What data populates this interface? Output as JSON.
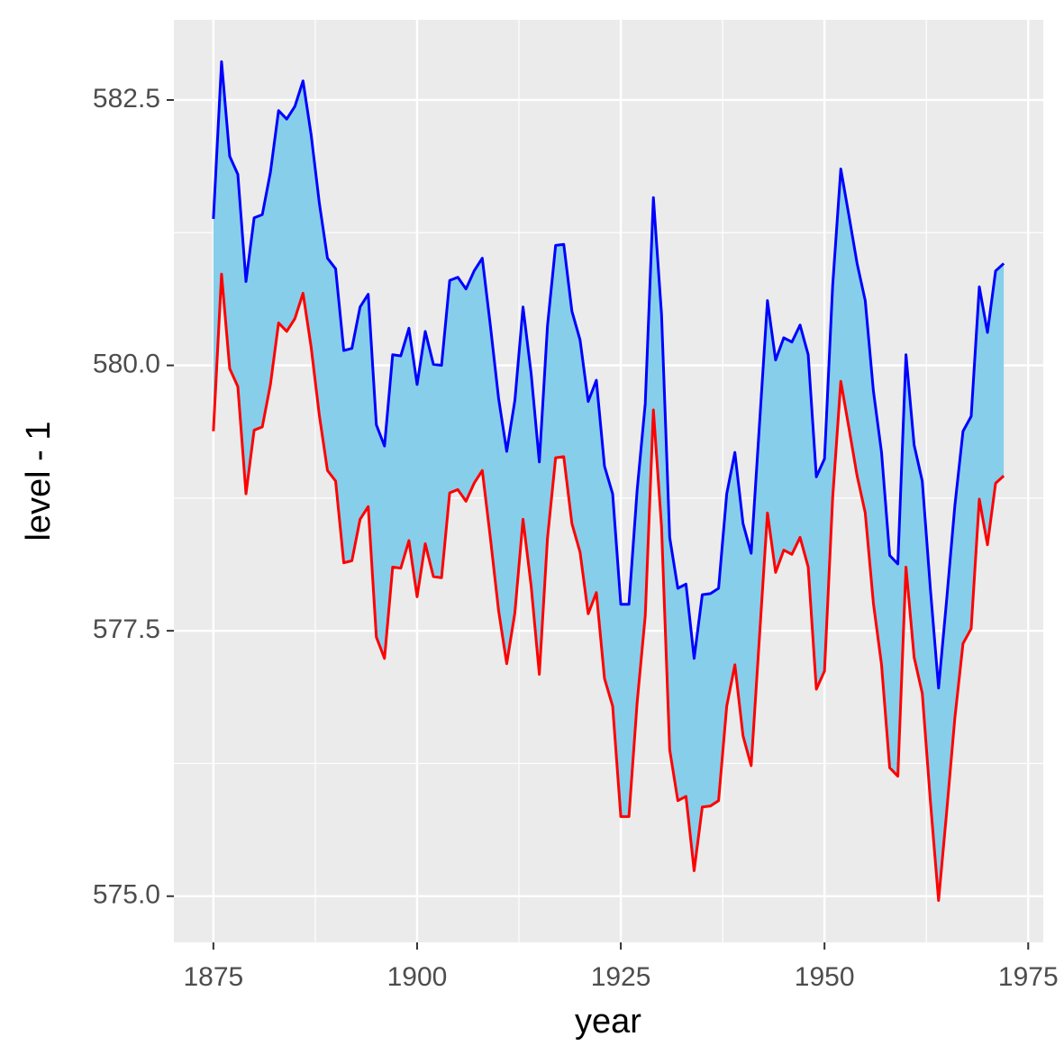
{
  "chart_data": {
    "type": "ribbon",
    "xlabel": "year",
    "ylabel": "level - 1",
    "x": [
      1875,
      1876,
      1877,
      1878,
      1879,
      1880,
      1881,
      1882,
      1883,
      1884,
      1885,
      1886,
      1887,
      1888,
      1889,
      1890,
      1891,
      1892,
      1893,
      1894,
      1895,
      1896,
      1897,
      1898,
      1899,
      1900,
      1901,
      1902,
      1903,
      1904,
      1905,
      1906,
      1907,
      1908,
      1909,
      1910,
      1911,
      1912,
      1913,
      1914,
      1915,
      1916,
      1917,
      1918,
      1919,
      1920,
      1921,
      1922,
      1923,
      1924,
      1925,
      1926,
      1927,
      1928,
      1929,
      1930,
      1931,
      1932,
      1933,
      1934,
      1935,
      1936,
      1937,
      1938,
      1939,
      1940,
      1941,
      1942,
      1943,
      1944,
      1945,
      1946,
      1947,
      1948,
      1949,
      1950,
      1951,
      1952,
      1953,
      1954,
      1955,
      1956,
      1957,
      1958,
      1959,
      1960,
      1961,
      1962,
      1963,
      1964,
      1965,
      1966,
      1967,
      1968,
      1969,
      1970,
      1971,
      1972
    ],
    "series": [
      {
        "color": "#ff0000",
        "values": [
          579.38,
          580.86,
          579.97,
          579.8,
          578.79,
          579.39,
          579.42,
          579.82,
          580.4,
          580.32,
          580.44,
          580.68,
          580.17,
          579.53,
          579.01,
          578.91,
          578.14,
          578.16,
          578.55,
          578.67,
          577.44,
          577.24,
          578.1,
          578.09,
          578.35,
          577.82,
          578.32,
          578.01,
          578.0,
          578.8,
          578.83,
          578.72,
          578.89,
          579.01,
          578.37,
          577.69,
          577.19,
          577.67,
          578.55,
          577.92,
          577.09,
          578.37,
          579.13,
          579.14,
          578.51,
          578.24,
          577.66,
          577.86,
          577.05,
          576.79,
          575.75,
          575.75,
          576.82,
          577.64,
          579.58,
          578.48,
          576.38,
          575.9,
          575.94,
          575.24,
          575.84,
          575.85,
          575.9,
          576.79,
          577.18,
          576.51,
          576.23,
          577.42,
          578.61,
          578.05,
          578.26,
          578.22,
          578.38,
          578.1,
          576.95,
          577.12,
          578.75,
          579.85,
          579.41,
          578.96,
          578.61,
          577.76,
          577.18,
          576.21,
          576.13,
          578.1,
          577.25,
          576.91,
          575.89,
          574.96,
          575.8,
          576.68,
          577.38,
          577.52,
          578.74,
          578.31,
          578.89,
          578.96
        ]
      },
      {
        "color": "#0000ff",
        "values": [
          581.38,
          582.86,
          581.97,
          581.8,
          580.79,
          581.39,
          581.42,
          581.82,
          582.4,
          582.32,
          582.44,
          582.68,
          582.17,
          581.53,
          581.01,
          580.91,
          580.14,
          580.16,
          580.55,
          580.67,
          579.44,
          579.24,
          580.1,
          580.09,
          580.35,
          579.82,
          580.32,
          580.01,
          580.0,
          580.8,
          580.83,
          580.72,
          580.89,
          581.01,
          580.37,
          579.69,
          579.19,
          579.67,
          580.55,
          579.92,
          579.09,
          580.37,
          581.13,
          581.14,
          580.51,
          580.24,
          579.66,
          579.86,
          579.05,
          578.79,
          577.75,
          577.75,
          578.82,
          579.64,
          581.58,
          580.48,
          578.38,
          577.9,
          577.94,
          577.24,
          577.84,
          577.85,
          577.9,
          578.79,
          579.18,
          578.51,
          578.23,
          579.42,
          580.61,
          580.05,
          580.26,
          580.22,
          580.38,
          580.1,
          578.95,
          579.12,
          580.75,
          581.85,
          581.41,
          580.96,
          580.61,
          579.76,
          579.18,
          578.21,
          578.13,
          580.1,
          579.25,
          578.91,
          577.89,
          576.96,
          577.8,
          578.68,
          579.38,
          579.52,
          580.74,
          580.31,
          580.89,
          580.96
        ]
      }
    ],
    "fill": "#87ceeb",
    "xlim": [
      1870.15,
      1976.85
    ],
    "xticks": [
      1875,
      1900,
      1925,
      1950,
      1975
    ],
    "xminor": [
      1887.5,
      1912.5,
      1937.5,
      1962.5
    ],
    "ylim": [
      574.565,
      583.255
    ],
    "yticks": [
      {
        "value": 575,
        "label": "575.0"
      },
      577.5,
      {
        "value": 580,
        "label": "580.0"
      },
      582.5
    ],
    "yminor": [
      576.25,
      578.75,
      581.25
    ],
    "grid": true
  }
}
